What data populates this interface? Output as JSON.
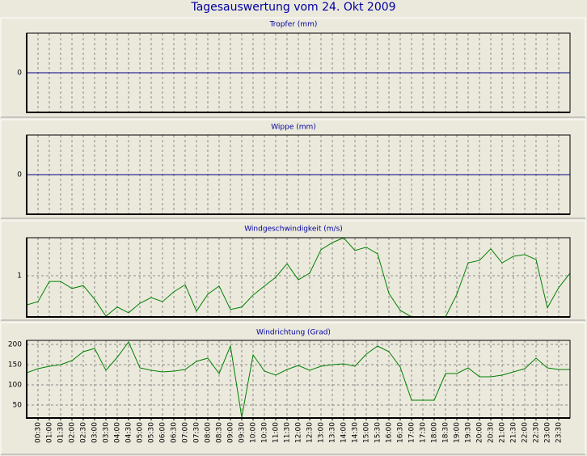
{
  "title": "Tagesauswertung vom 24. Okt 2009",
  "chart_data": [
    {
      "type": "line",
      "title": "Tropfer (mm)",
      "color": "#000080",
      "ylim": [
        -1,
        1
      ],
      "yticks": [
        0
      ],
      "grid": true,
      "values": [
        0,
        0,
        0,
        0,
        0,
        0,
        0,
        0,
        0,
        0,
        0,
        0,
        0,
        0,
        0,
        0,
        0,
        0,
        0,
        0,
        0,
        0,
        0,
        0,
        0,
        0,
        0,
        0,
        0,
        0,
        0,
        0,
        0,
        0,
        0,
        0,
        0,
        0,
        0,
        0,
        0,
        0,
        0,
        0,
        0,
        0,
        0,
        0,
        0
      ]
    },
    {
      "type": "line",
      "title": "Wippe (mm)",
      "color": "#000080",
      "ylim": [
        -1,
        1
      ],
      "yticks": [
        0
      ],
      "grid": true,
      "values": [
        0,
        0,
        0,
        0,
        0,
        0,
        0,
        0,
        0,
        0,
        0,
        0,
        0,
        0,
        0,
        0,
        0,
        0,
        0,
        0,
        0,
        0,
        0,
        0,
        0,
        0,
        0,
        0,
        0,
        0,
        0,
        0,
        0,
        0,
        0,
        0,
        0,
        0,
        0,
        0,
        0,
        0,
        0,
        0,
        0,
        0,
        0,
        0,
        0
      ]
    },
    {
      "type": "line",
      "title": "Windgeschwindigkeit (m/s)",
      "color": "#008000",
      "ylim": [
        0,
        1.92
      ],
      "yticks": [
        1
      ],
      "grid": true,
      "values": [
        0.29,
        0.37,
        0.86,
        0.86,
        0.69,
        0.76,
        0.43,
        0.02,
        0.24,
        0.1,
        0.33,
        0.47,
        0.37,
        0.61,
        0.78,
        0.14,
        0.55,
        0.75,
        0.18,
        0.24,
        0.53,
        0.75,
        0.96,
        1.29,
        0.9,
        1.06,
        1.63,
        1.8,
        1.92,
        1.61,
        1.69,
        1.53,
        0.57,
        0.16,
        0,
        0,
        0,
        0,
        0.55,
        1.31,
        1.37,
        1.65,
        1.31,
        1.47,
        1.51,
        1.39,
        0.22,
        0.71,
        1.06
      ]
    },
    {
      "type": "line",
      "title": "Windrichtung (Grad)",
      "color": "#008000",
      "ylim": [
        18,
        210
      ],
      "yticks": [
        50,
        100,
        150,
        200
      ],
      "grid": true,
      "values": [
        130,
        140,
        146,
        150,
        160,
        182,
        190,
        136,
        168,
        206,
        142,
        136,
        132,
        134,
        138,
        158,
        166,
        128,
        196,
        20,
        174,
        134,
        124,
        138,
        148,
        136,
        146,
        150,
        152,
        146,
        176,
        196,
        182,
        144,
        62,
        62,
        62,
        128,
        128,
        142,
        120,
        120,
        124,
        132,
        140,
        166,
        142,
        138,
        138
      ],
      "categories": [
        null,
        "00:30",
        "01:00",
        "01:30",
        "02:00",
        "02:30",
        "03:00",
        "03:30",
        "04:00",
        "04:30",
        "05:00",
        "05:30",
        "06:00",
        "06:30",
        "07:00",
        "07:30",
        "08:00",
        "08:30",
        "09:00",
        "09:30",
        "10:00",
        "10:30",
        "11:00",
        "11:30",
        "12:00",
        "12:30",
        "13:00",
        "13:30",
        "14:00",
        "14:30",
        "15:00",
        "15:30",
        "16:00",
        "16:30",
        "17:00",
        "17:30",
        "18:00",
        "18:30",
        "19:00",
        "19:30",
        "20:00",
        "20:30",
        "21:00",
        "21:30",
        "22:00",
        "22:30",
        "23:00",
        "23:30",
        null
      ]
    }
  ]
}
